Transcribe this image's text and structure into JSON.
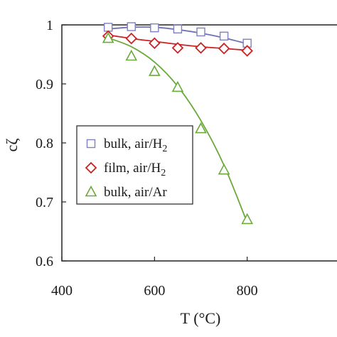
{
  "chart_data": {
    "type": "scatter",
    "xlabel": "T (°C)",
    "ylabel": "cζ",
    "xlim": [
      400,
      1000
    ],
    "ylim": [
      0.6,
      1.0
    ],
    "xticks": [
      400,
      600,
      800
    ],
    "yticks": [
      0.6,
      0.7,
      0.8,
      0.9,
      1.0
    ],
    "xtick_labels": [
      "400",
      "600",
      "800"
    ],
    "ytick_labels": [
      "0.6",
      "0.7",
      "0.8",
      "0.9",
      "1"
    ],
    "grid": false,
    "legend_position": "center-left",
    "series": [
      {
        "name": "bulk, air/H2",
        "label_main": "bulk, air/H",
        "label_sub": "2",
        "marker": "square",
        "color": "#8080c0",
        "line_color": "#7070b8",
        "x": [
          500,
          550,
          600,
          650,
          700,
          750,
          800
        ],
        "y": [
          0.996,
          0.997,
          0.995,
          0.993,
          0.988,
          0.981,
          0.969
        ],
        "fit_y": [
          0.993,
          0.996,
          0.996,
          0.992,
          0.986,
          0.978,
          0.968
        ]
      },
      {
        "name": "film, air/H2",
        "label_main": "film, air/H",
        "label_sub": "2",
        "marker": "diamond",
        "color": "#cc2222",
        "line_color": "#cc2222",
        "x": [
          500,
          550,
          600,
          650,
          700,
          750,
          800
        ],
        "y": [
          0.981,
          0.977,
          0.969,
          0.961,
          0.961,
          0.96,
          0.956
        ],
        "fit_y": [
          0.983,
          0.977,
          0.972,
          0.967,
          0.963,
          0.96,
          0.957
        ]
      },
      {
        "name": "bulk, air/Ar",
        "label_main": "bulk, air/Ar",
        "label_sub": "",
        "marker": "triangle",
        "color": "#6aaa3a",
        "line_color": "#6aaa3a",
        "x": [
          500,
          550,
          600,
          650,
          700,
          750,
          800
        ],
        "y": [
          0.977,
          0.947,
          0.921,
          0.894,
          0.824,
          0.754,
          0.67
        ],
        "fit_y": [
          0.978,
          0.963,
          0.937,
          0.896,
          0.838,
          0.762,
          0.665
        ]
      }
    ]
  }
}
